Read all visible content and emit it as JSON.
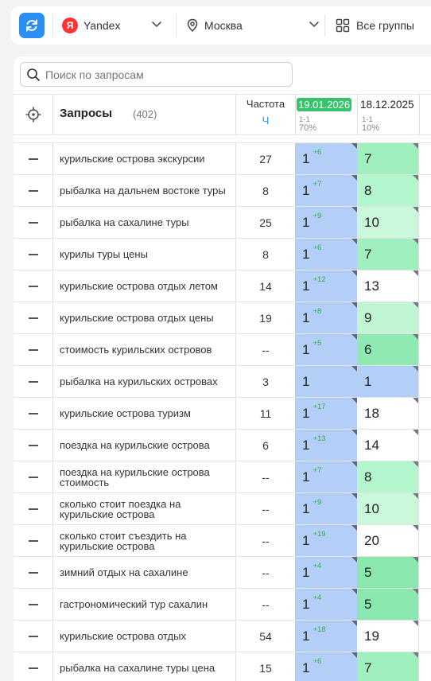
{
  "toolbar": {
    "search_engine": "Yandex",
    "search_engine_logo": "Я",
    "region": "Москва",
    "groups": "Все группы"
  },
  "search": {
    "placeholder": "Поиск по запросам"
  },
  "table_header": {
    "queries_label": "Запросы",
    "queries_count": "(402)",
    "frequency_label": "Частота",
    "frequency_sub": "Ч",
    "date_current": "19.01.2026",
    "date_current_range": "1-1",
    "date_current_percent": "70%",
    "date_previous": "18.12.2025",
    "date_previous_range": "1-1",
    "date_previous_percent": "10%"
  },
  "colors": {
    "accent": "#2b8ef5",
    "date_badge": "#36c46b",
    "current_column": "#b4cff7",
    "delta_text": "#2faa55"
  },
  "rows": [
    {
      "query": "курильские острова экскурсии",
      "freq": "27",
      "pos": "1",
      "delta": "+6",
      "prev": "7",
      "prev_color": "#9ff0be"
    },
    {
      "query": "рыбалка на дальнем востоке туры",
      "freq": "8",
      "pos": "1",
      "delta": "+7",
      "prev": "8",
      "prev_color": "#b3f5cc"
    },
    {
      "query": "рыбалка на сахалине туры",
      "freq": "25",
      "pos": "1",
      "delta": "+9",
      "prev": "10",
      "prev_color": "#c9f8da"
    },
    {
      "query": "курилы туры цены",
      "freq": "8",
      "pos": "1",
      "delta": "+6",
      "prev": "7",
      "prev_color": "#9ff0be"
    },
    {
      "query": "курильские острова отдых летом",
      "freq": "14",
      "pos": "1",
      "delta": "+12",
      "prev": "13",
      "prev_color": "#ffffff"
    },
    {
      "query": "курильские острова отдых цены",
      "freq": "19",
      "pos": "1",
      "delta": "+8",
      "prev": "9",
      "prev_color": "#c0f6d4"
    },
    {
      "query": "стоимость курильских островов",
      "freq": "--",
      "pos": "1",
      "delta": "+5",
      "prev": "6",
      "prev_color": "#8eeab2"
    },
    {
      "query": "рыбалка на курильских островах",
      "freq": "3",
      "pos": "1",
      "delta": "",
      "prev": "1",
      "prev_color": "#b4cff7"
    },
    {
      "query": "курильские острова туризм",
      "freq": "11",
      "pos": "1",
      "delta": "+17",
      "prev": "18",
      "prev_color": "#ffffff"
    },
    {
      "query": "поездка на курильские острова",
      "freq": "6",
      "pos": "1",
      "delta": "+13",
      "prev": "14",
      "prev_color": "#ffffff"
    },
    {
      "query": "поездка на курильские острова стоимость",
      "freq": "--",
      "pos": "1",
      "delta": "+7",
      "prev": "8",
      "prev_color": "#b3f5cc"
    },
    {
      "query": "сколько стоит поездка на курильские острова",
      "freq": "--",
      "pos": "1",
      "delta": "+9",
      "prev": "10",
      "prev_color": "#c9f8da"
    },
    {
      "query": "сколько стоит съездить на курильские острова",
      "freq": "--",
      "pos": "1",
      "delta": "+19",
      "prev": "20",
      "prev_color": "#ffffff"
    },
    {
      "query": "зимний отдых на сахалине",
      "freq": "--",
      "pos": "1",
      "delta": "+4",
      "prev": "5",
      "prev_color": "#8ae8ae"
    },
    {
      "query": "гастрономический тур сахалин",
      "freq": "--",
      "pos": "1",
      "delta": "+4",
      "prev": "5",
      "prev_color": "#8ae8ae"
    },
    {
      "query": "курильские острова отдых",
      "freq": "54",
      "pos": "1",
      "delta": "+18",
      "prev": "19",
      "prev_color": "#ffffff"
    },
    {
      "query": "рыбалка на сахалине туры цена",
      "freq": "15",
      "pos": "1",
      "delta": "+6",
      "prev": "7",
      "prev_color": "#9ff0be"
    }
  ]
}
